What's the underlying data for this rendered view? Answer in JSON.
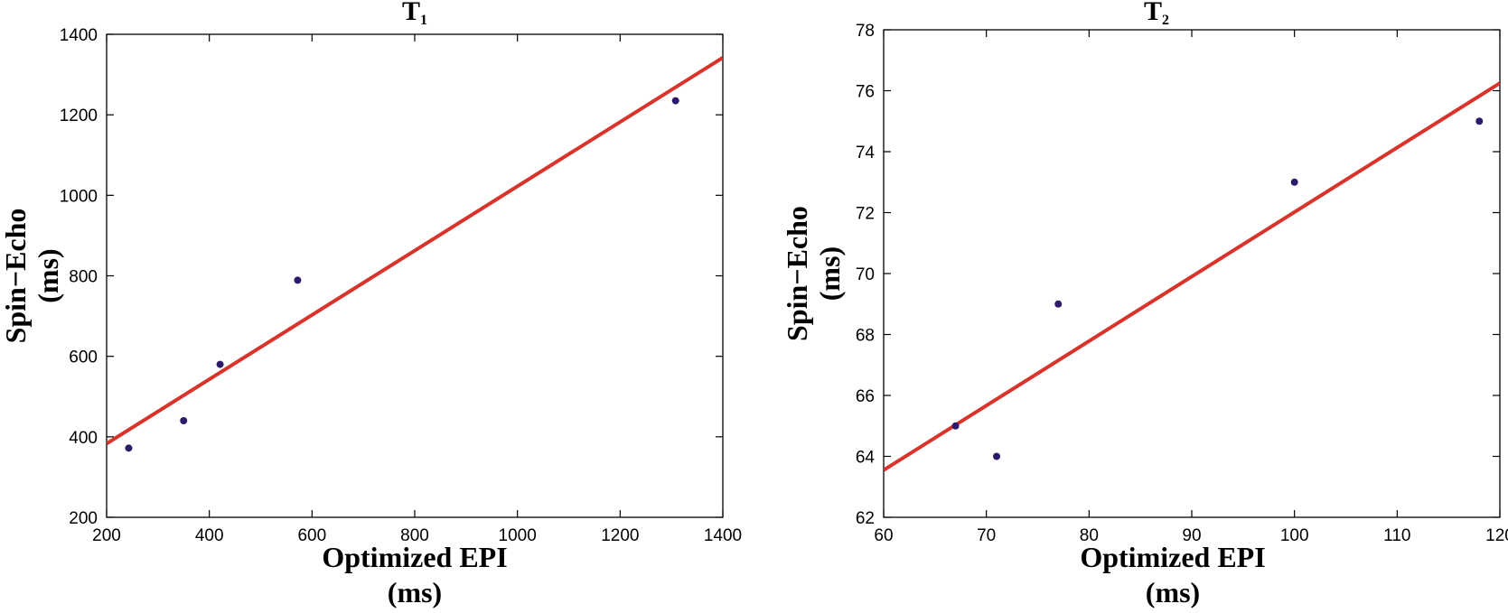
{
  "chart_data": [
    {
      "type": "scatter",
      "title": "T",
      "title_subscript": "1",
      "xlabel": [
        "Optimized EPI",
        "(ms)"
      ],
      "ylabel": [
        "Spin−Echo",
        "(ms)"
      ],
      "xlim": [
        200,
        1400
      ],
      "ylim": [
        200,
        1400
      ],
      "xticks": [
        200,
        400,
        600,
        800,
        1000,
        1200,
        1400
      ],
      "yticks": [
        200,
        400,
        600,
        800,
        1000,
        1200,
        1400
      ],
      "points": [
        {
          "x": 243,
          "y": 372
        },
        {
          "x": 350,
          "y": 440
        },
        {
          "x": 421,
          "y": 580
        },
        {
          "x": 572,
          "y": 789
        },
        {
          "x": 1308,
          "y": 1235
        }
      ],
      "fit_line": {
        "x": [
          200,
          1400
        ],
        "y": [
          383,
          1342
        ]
      },
      "grid": false,
      "colors": {
        "points": "#2e1a6b",
        "fit_line": "#d9342b",
        "axes": "#000000"
      }
    },
    {
      "type": "scatter",
      "title": "T",
      "title_subscript": "2",
      "xlabel": [
        "Optimized EPI",
        "(ms)"
      ],
      "ylabel": [
        "Spin−Echo",
        "(ms)"
      ],
      "xlim": [
        60,
        120
      ],
      "ylim": [
        62,
        78
      ],
      "xticks": [
        60,
        70,
        80,
        90,
        100,
        110,
        120
      ],
      "yticks": [
        62,
        64,
        66,
        68,
        70,
        72,
        74,
        76,
        78
      ],
      "points": [
        {
          "x": 67,
          "y": 65
        },
        {
          "x": 71,
          "y": 64
        },
        {
          "x": 77,
          "y": 69
        },
        {
          "x": 100,
          "y": 73
        },
        {
          "x": 118,
          "y": 75
        }
      ],
      "fit_line": {
        "x": [
          60,
          120
        ],
        "y": [
          63.55,
          76.25
        ]
      },
      "grid": false,
      "colors": {
        "points": "#2e1a6b",
        "fit_line": "#d9342b",
        "axes": "#000000"
      }
    }
  ]
}
